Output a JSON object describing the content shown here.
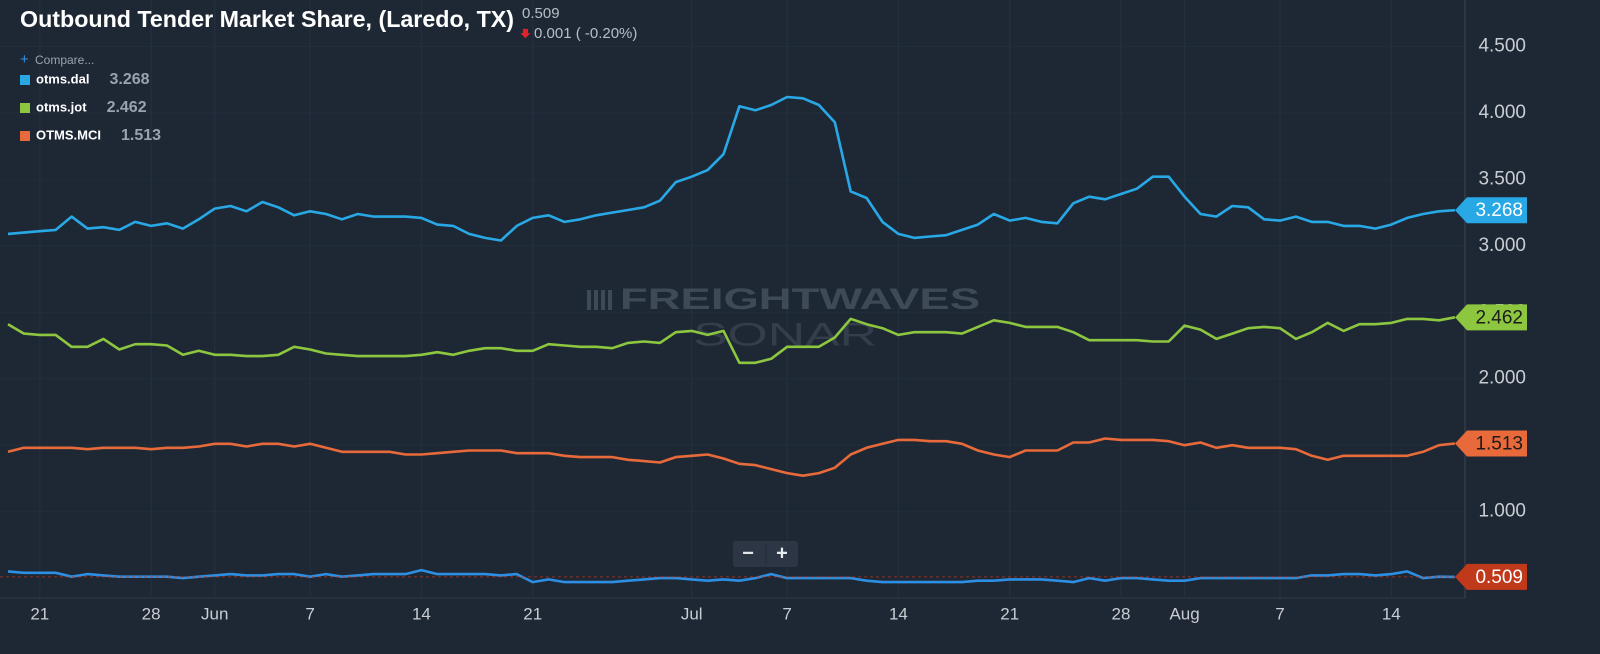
{
  "header": {
    "value_change": "0.001 ( -0.20%)",
    "compare": "Compare...",
    "zoom_controls": [
      "−",
      "+"
    ],
    "watermark": [
      "FREIGHTWAVES",
      "SONAR"
    ]
  },
  "chart_data": {
    "type": "line",
    "title": "Outbound Tender Market Share, (Laredo, TX)",
    "x": [
      "May 19",
      "May 20",
      "May 21",
      "May 22",
      "May 23",
      "May 24",
      "May 25",
      "May 26",
      "May 27",
      "May 28",
      "May 29",
      "May 30",
      "May 31",
      "Jun 1",
      "Jun 2",
      "Jun 3",
      "Jun 4",
      "Jun 5",
      "Jun 6",
      "Jun 7",
      "Jun 8",
      "Jun 9",
      "Jun 10",
      "Jun 11",
      "Jun 12",
      "Jun 13",
      "Jun 14",
      "Jun 15",
      "Jun 16",
      "Jun 17",
      "Jun 18",
      "Jun 19",
      "Jun 20",
      "Jun 21",
      "Jun 22",
      "Jun 23",
      "Jun 24",
      "Jun 25",
      "Jun 26",
      "Jun 27",
      "Jun 28",
      "Jun 29",
      "Jun 30",
      "Jul 1",
      "Jul 2",
      "Jul 3",
      "Jul 4",
      "Jul 5",
      "Jul 6",
      "Jul 7",
      "Jul 8",
      "Jul 9",
      "Jul 10",
      "Jul 11",
      "Jul 12",
      "Jul 13",
      "Jul 14",
      "Jul 15",
      "Jul 16",
      "Jul 17",
      "Jul 18",
      "Jul 19",
      "Jul 20",
      "Jul 21",
      "Jul 22",
      "Jul 23",
      "Jul 24",
      "Jul 25",
      "Jul 26",
      "Jul 27",
      "Jul 28",
      "Jul 29",
      "Jul 30",
      "Jul 31",
      "Aug 1",
      "Aug 2",
      "Aug 3",
      "Aug 4",
      "Aug 5",
      "Aug 6",
      "Aug 7",
      "Aug 8",
      "Aug 9",
      "Aug 10",
      "Aug 11",
      "Aug 12",
      "Aug 13",
      "Aug 14",
      "Aug 15",
      "Aug 16",
      "Aug 17",
      "Aug 18"
    ],
    "xticks": [
      {
        "value": "May 21",
        "label": "21"
      },
      {
        "value": "May 28",
        "label": "28"
      },
      {
        "value": "Jun 1",
        "label": "Jun"
      },
      {
        "value": "Jun 7",
        "label": "7"
      },
      {
        "value": "Jun 14",
        "label": "14"
      },
      {
        "value": "Jun 21",
        "label": "21"
      },
      {
        "value": "Jul 1",
        "label": "Jul"
      },
      {
        "value": "Jul 7",
        "label": "7"
      },
      {
        "value": "Jul 14",
        "label": "14"
      },
      {
        "value": "Jul 21",
        "label": "21"
      },
      {
        "value": "Jul 28",
        "label": "28"
      },
      {
        "value": "Aug 1",
        "label": "Aug"
      },
      {
        "value": "Aug 7",
        "label": "7"
      },
      {
        "value": "Aug 14",
        "label": "14"
      }
    ],
    "ylim": [
      0.35,
      4.85
    ],
    "yticks": [
      {
        "value": 1,
        "label": "1.000"
      },
      {
        "value": 1.5,
        "label": "1.500"
      },
      {
        "value": 2,
        "label": "2.000"
      },
      {
        "value": 2.5,
        "label": "2.500"
      },
      {
        "value": 3,
        "label": "3.000"
      },
      {
        "value": 3.5,
        "label": "3.500"
      },
      {
        "value": 4,
        "label": "4.000"
      },
      {
        "value": 4.5,
        "label": "4.500"
      }
    ],
    "grid": true,
    "series": [
      {
        "name": "otms.dal",
        "color": "#29a8e6",
        "values": [
          3.09,
          3.1,
          3.11,
          3.12,
          3.22,
          3.13,
          3.14,
          3.12,
          3.18,
          3.15,
          3.17,
          3.13,
          3.2,
          3.28,
          3.3,
          3.26,
          3.33,
          3.29,
          3.23,
          3.26,
          3.24,
          3.2,
          3.24,
          3.22,
          3.22,
          3.22,
          3.21,
          3.16,
          3.15,
          3.09,
          3.06,
          3.04,
          3.15,
          3.21,
          3.23,
          3.18,
          3.2,
          3.23,
          3.25,
          3.27,
          3.29,
          3.34,
          3.48,
          3.52,
          3.57,
          3.69,
          4.05,
          4.02,
          4.06,
          4.12,
          4.11,
          4.06,
          3.93,
          3.41,
          3.36,
          3.18,
          3.09,
          3.06,
          3.07,
          3.08,
          3.12,
          3.16,
          3.24,
          3.19,
          3.21,
          3.18,
          3.17,
          3.32,
          3.37,
          3.35,
          3.39,
          3.43,
          3.52,
          3.52,
          3.37,
          3.24,
          3.22,
          3.3,
          3.29,
          3.2,
          3.19,
          3.22,
          3.18,
          3.18,
          3.15,
          3.15,
          3.13,
          3.16,
          3.21,
          3.24,
          3.26,
          3.268
        ]
      },
      {
        "name": "otms.jot",
        "color": "#8dc63f",
        "values": [
          2.41,
          2.34,
          2.33,
          2.33,
          2.24,
          2.24,
          2.3,
          2.22,
          2.26,
          2.26,
          2.25,
          2.18,
          2.21,
          2.18,
          2.18,
          2.17,
          2.17,
          2.18,
          2.24,
          2.22,
          2.19,
          2.18,
          2.17,
          2.17,
          2.17,
          2.17,
          2.18,
          2.2,
          2.18,
          2.21,
          2.23,
          2.23,
          2.21,
          2.21,
          2.26,
          2.25,
          2.24,
          2.24,
          2.23,
          2.27,
          2.28,
          2.27,
          2.35,
          2.36,
          2.33,
          2.36,
          2.12,
          2.12,
          2.15,
          2.24,
          2.24,
          2.24,
          2.31,
          2.45,
          2.41,
          2.38,
          2.33,
          2.35,
          2.35,
          2.35,
          2.34,
          2.39,
          2.44,
          2.42,
          2.39,
          2.39,
          2.39,
          2.35,
          2.29,
          2.29,
          2.29,
          2.29,
          2.28,
          2.28,
          2.4,
          2.37,
          2.3,
          2.34,
          2.38,
          2.39,
          2.38,
          2.3,
          2.35,
          2.42,
          2.36,
          2.41,
          2.41,
          2.42,
          2.45,
          2.45,
          2.44,
          2.462
        ]
      },
      {
        "name": "OTMS.MCI",
        "color": "#e86a3a",
        "values": [
          1.45,
          1.48,
          1.48,
          1.48,
          1.48,
          1.47,
          1.48,
          1.48,
          1.48,
          1.47,
          1.48,
          1.48,
          1.49,
          1.51,
          1.51,
          1.49,
          1.51,
          1.51,
          1.49,
          1.51,
          1.48,
          1.45,
          1.45,
          1.45,
          1.45,
          1.43,
          1.43,
          1.44,
          1.45,
          1.46,
          1.46,
          1.46,
          1.44,
          1.44,
          1.44,
          1.42,
          1.41,
          1.41,
          1.41,
          1.39,
          1.38,
          1.37,
          1.41,
          1.42,
          1.43,
          1.4,
          1.36,
          1.35,
          1.32,
          1.29,
          1.27,
          1.29,
          1.33,
          1.43,
          1.48,
          1.51,
          1.54,
          1.54,
          1.53,
          1.53,
          1.51,
          1.46,
          1.43,
          1.41,
          1.46,
          1.46,
          1.46,
          1.52,
          1.52,
          1.55,
          1.54,
          1.54,
          1.54,
          1.53,
          1.5,
          1.52,
          1.48,
          1.5,
          1.48,
          1.48,
          1.48,
          1.47,
          1.42,
          1.39,
          1.42,
          1.42,
          1.42,
          1.42,
          1.42,
          1.45,
          1.5,
          1.513
        ]
      },
      {
        "color": "#2d8fe4",
        "badge_color": "#c1391b",
        "values": [
          0.55,
          0.54,
          0.54,
          0.54,
          0.51,
          0.53,
          0.52,
          0.51,
          0.51,
          0.51,
          0.51,
          0.5,
          0.51,
          0.52,
          0.53,
          0.52,
          0.52,
          0.53,
          0.53,
          0.51,
          0.53,
          0.51,
          0.52,
          0.53,
          0.53,
          0.53,
          0.56,
          0.53,
          0.53,
          0.53,
          0.53,
          0.52,
          0.53,
          0.47,
          0.49,
          0.47,
          0.47,
          0.47,
          0.47,
          0.48,
          0.49,
          0.5,
          0.5,
          0.49,
          0.48,
          0.49,
          0.48,
          0.5,
          0.53,
          0.5,
          0.5,
          0.5,
          0.5,
          0.5,
          0.48,
          0.47,
          0.47,
          0.47,
          0.47,
          0.47,
          0.47,
          0.48,
          0.48,
          0.49,
          0.49,
          0.49,
          0.48,
          0.47,
          0.5,
          0.48,
          0.5,
          0.5,
          0.49,
          0.48,
          0.48,
          0.5,
          0.5,
          0.5,
          0.5,
          0.5,
          0.5,
          0.5,
          0.52,
          0.52,
          0.53,
          0.53,
          0.52,
          0.53,
          0.55,
          0.5,
          0.51,
          0.509
        ]
      }
    ]
  }
}
